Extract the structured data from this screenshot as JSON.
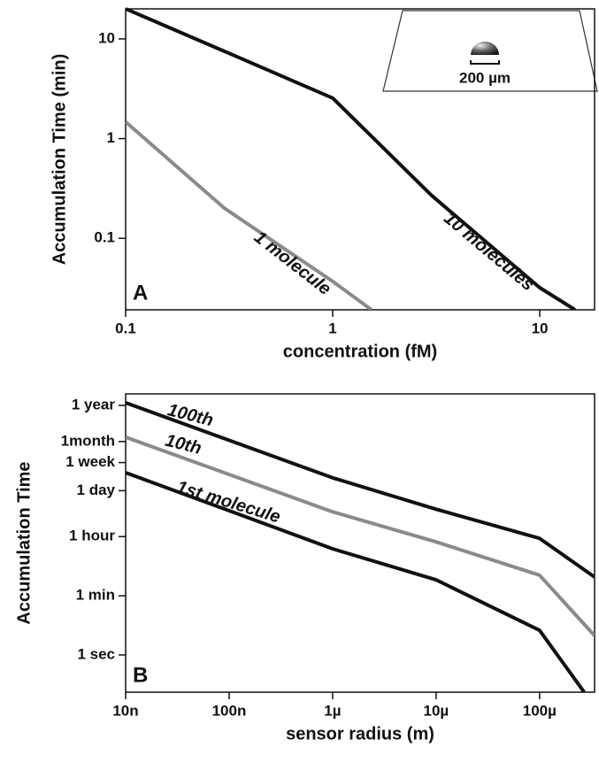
{
  "chart_data": [
    {
      "type": "line",
      "panel_label": "A",
      "xlabel": "concentration (fM)",
      "ylabel": "Accumulation Time (min)",
      "xscale": "log",
      "yscale": "log",
      "xlim": [
        0.1,
        18.4
      ],
      "ylim": [
        0.0192,
        20
      ],
      "xticks": [
        0.1,
        1,
        10
      ],
      "yticks": [
        0.1,
        1,
        10
      ],
      "inset_label": "200 µm",
      "series": [
        {
          "name": "10 molecules",
          "color": "#111111",
          "x": [
            0.1,
            0.3,
            1,
            3,
            10,
            14.8
          ],
          "values": [
            20,
            7.5,
            2.55,
            0.27,
            0.032,
            0.0192
          ]
        },
        {
          "name": "1 molecule",
          "color": "#8a8a8a",
          "x": [
            0.1,
            0.3,
            1,
            1.54
          ],
          "values": [
            1.47,
            0.2,
            0.037,
            0.0192
          ]
        }
      ]
    },
    {
      "type": "line",
      "panel_label": "B",
      "xlabel": "sensor radius (m)",
      "ylabel": "Accumulation Time",
      "xscale": "log",
      "yscale": "log",
      "xlim": [
        1e-08,
        0.00034
      ],
      "ylim": [
        0.076,
        70000000
      ],
      "xticks": [
        {
          "value": 1e-08,
          "label": "10n"
        },
        {
          "value": 1e-07,
          "label": "100n"
        },
        {
          "value": 1e-06,
          "label": "1µ"
        },
        {
          "value": 1e-05,
          "label": "10µ"
        },
        {
          "value": 0.0001,
          "label": "100µ"
        }
      ],
      "yticks": [
        {
          "value": 1,
          "label": "1 sec"
        },
        {
          "value": 60,
          "label": "1 min"
        },
        {
          "value": 3600,
          "label": "1 hour"
        },
        {
          "value": 86400,
          "label": "1 day"
        },
        {
          "value": 604800,
          "label": "1 week"
        },
        {
          "value": 2592000,
          "label": "1month"
        },
        {
          "value": 31536000,
          "label": "1 year"
        }
      ],
      "series": [
        {
          "name": "100th",
          "color": "#111111",
          "x": [
            1e-08,
            1e-06,
            1e-05,
            0.0001,
            0.00034
          ],
          "values": [
            38000000,
            210000,
            24000,
            3200,
            220
          ]
        },
        {
          "name": "10th",
          "color": "#8a8a8a",
          "x": [
            1e-08,
            1e-06,
            1e-05,
            0.0001,
            0.00034
          ],
          "values": [
            3500000,
            20000,
            2500,
            250,
            3.8
          ]
        },
        {
          "name": "1st molecule",
          "color": "#111111",
          "x": [
            1e-08,
            1e-06,
            1e-05,
            0.0001,
            0.00027
          ],
          "values": [
            300000,
            1550,
            180,
            5.5,
            0.076
          ]
        }
      ]
    }
  ]
}
